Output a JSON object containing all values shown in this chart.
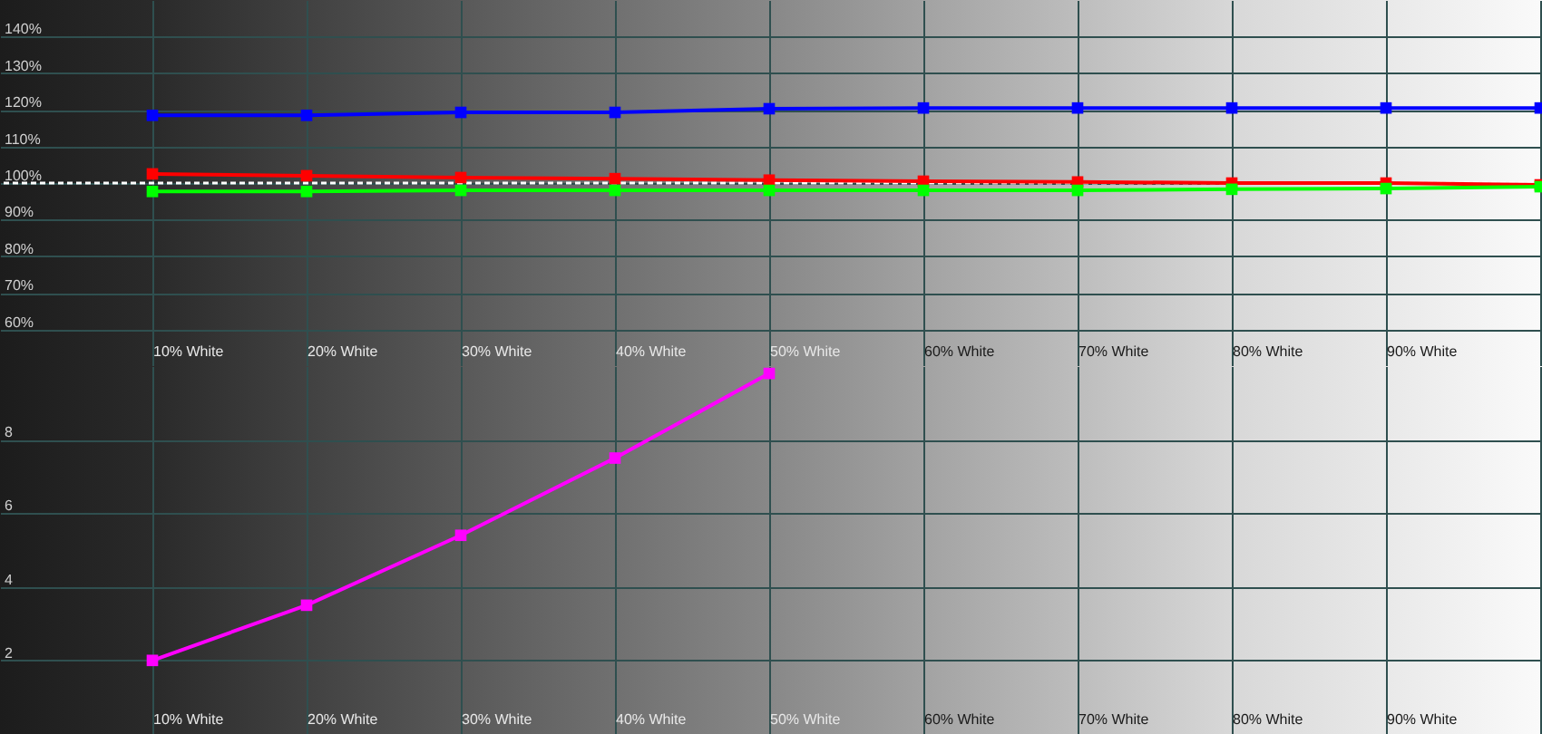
{
  "chart_data": [
    {
      "type": "line",
      "categories": [
        "10% White",
        "20% White",
        "30% White",
        "40% White",
        "50% White",
        "60% White",
        "70% White",
        "80% White",
        "90% White",
        null
      ],
      "series": [
        {
          "color": "#0000ff",
          "values": [
            118.5,
            118.5,
            119.3,
            119.3,
            120.3,
            120.5,
            120.5,
            120.5,
            120.5,
            120.5
          ]
        },
        {
          "color": "#ff0000",
          "values": [
            102.5,
            102,
            101.5,
            101.2,
            100.8,
            100.5,
            100.3,
            100,
            100,
            99.5
          ]
        },
        {
          "color": "#00ff00",
          "values": [
            97.7,
            97.7,
            98,
            98,
            98,
            98,
            98,
            98.3,
            98.5,
            99
          ]
        }
      ],
      "ylim": [
        50,
        150
      ],
      "yticks": [
        {
          "value": 60,
          "label": "60%"
        },
        {
          "value": 70,
          "label": "70%"
        },
        {
          "value": 80,
          "label": "80%"
        },
        {
          "value": 90,
          "label": "90%"
        },
        {
          "value": 100,
          "label": "100%"
        },
        {
          "value": 110,
          "label": "110%"
        },
        {
          "value": 120,
          "label": "120%"
        },
        {
          "value": 130,
          "label": "130%"
        },
        {
          "value": 140,
          "label": "140%"
        }
      ],
      "ref_lines": [
        {
          "axis": "y",
          "value": 100,
          "color": "#ffffff",
          "line_style": "dotted"
        }
      ],
      "grid": true,
      "marker": "square"
    },
    {
      "type": "line",
      "categories": [
        "10% White",
        "20% White",
        "30% White",
        "40% White",
        "50% White",
        "60% White",
        "70% White",
        "80% White",
        "90% White",
        null
      ],
      "series": [
        {
          "color": "#ff00ff",
          "values": [
            2.0,
            3.5,
            5.4,
            7.5,
            9.8,
            null,
            null,
            null,
            null,
            null
          ]
        }
      ],
      "ylim": [
        0,
        10
      ],
      "yticks": [
        2,
        4,
        6,
        8
      ],
      "grid": true,
      "marker": "square"
    }
  ]
}
